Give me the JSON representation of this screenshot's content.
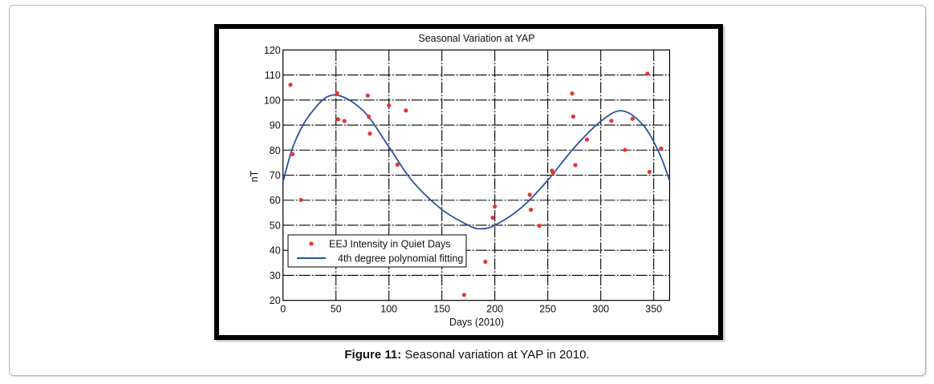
{
  "caption": {
    "label": "Figure 11:",
    "text": " Seasonal variation at YAP in 2010."
  },
  "colors": {
    "points": "#e53535",
    "curve": "#2b53a0",
    "grid": "#000000",
    "frame": "#000000"
  },
  "chart_data": {
    "type": "scatter",
    "title": "Seasonal Variation at YAP",
    "xlabel": "Days (2010)",
    "ylabel": "nT",
    "xlim": [
      0,
      365
    ],
    "ylim": [
      20,
      120
    ],
    "xticks": [
      0,
      50,
      100,
      150,
      200,
      250,
      300,
      350
    ],
    "yticks": [
      20,
      30,
      40,
      50,
      60,
      70,
      80,
      90,
      100,
      110,
      120
    ],
    "grid": true,
    "legend_position": "lower-left",
    "series": [
      {
        "name": "EEJ Intensity in Quiet Days",
        "kind": "points",
        "x": [
          7,
          9,
          17,
          51,
          52,
          58,
          80,
          81,
          82,
          100,
          108,
          116,
          171,
          191,
          198,
          200,
          233,
          234,
          242,
          254,
          255,
          273,
          274,
          276,
          287,
          310,
          323,
          330,
          344,
          346,
          357
        ],
        "y": [
          106.1,
          78.4,
          60.1,
          102.7,
          92.3,
          91.6,
          101.8,
          93.4,
          86.6,
          97.9,
          74.2,
          95.8,
          22.2,
          35.4,
          53.0,
          57.5,
          62.2,
          56.2,
          49.8,
          71.8,
          71.0,
          102.6,
          93.4,
          74.0,
          84.2,
          91.7,
          80.1,
          92.5,
          110.5,
          71.3,
          80.6
        ]
      },
      {
        "name": "4th degree polynomial fitting",
        "kind": "line",
        "x": [
          0,
          10,
          25,
          47,
          75,
          100,
          122,
          150,
          175,
          186,
          200,
          225,
          250,
          275,
          300,
          320,
          340,
          355,
          365
        ],
        "y": [
          67.3,
          82.0,
          94.0,
          102.0,
          96.0,
          81.3,
          67.7,
          56.3,
          50.0,
          48.6,
          50.0,
          57.0,
          68.0,
          81.0,
          91.5,
          95.7,
          90.0,
          79.0,
          67.8
        ]
      }
    ]
  }
}
